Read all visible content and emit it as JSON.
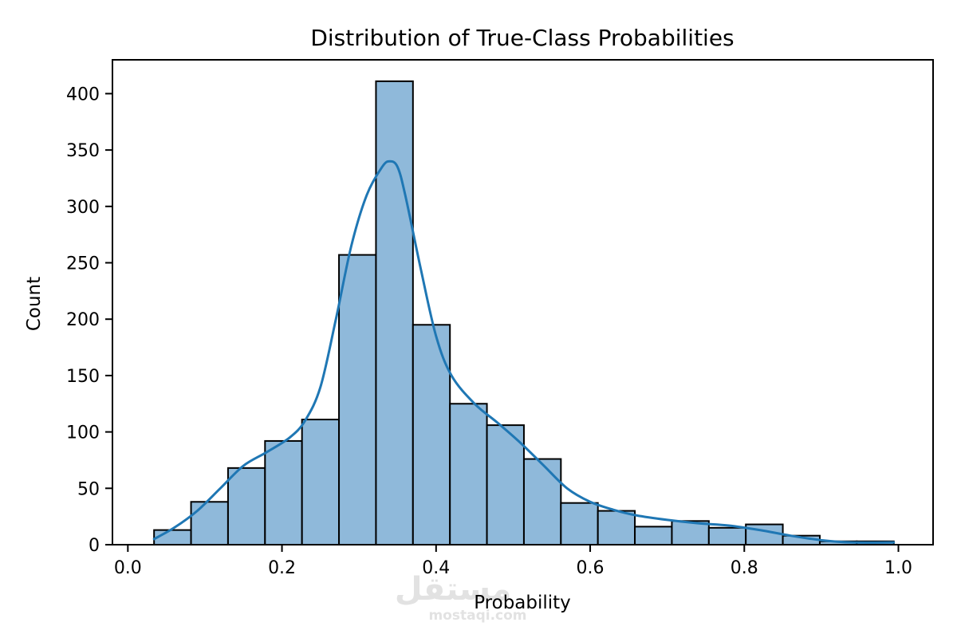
{
  "chart_data": {
    "type": "bar",
    "subtype": "histogram-with-kde",
    "title": "Distribution of True-Class Probabilities",
    "xlabel": "Probability",
    "ylabel": "Count",
    "xlim": [
      -0.02,
      1.045
    ],
    "ylim": [
      0,
      430
    ],
    "xticks": [
      0.0,
      0.2,
      0.4,
      0.6,
      0.8,
      1.0
    ],
    "xtick_labels": [
      "0.0",
      "0.2",
      "0.4",
      "0.6",
      "0.8",
      "1.0"
    ],
    "yticks": [
      0,
      50,
      100,
      150,
      200,
      250,
      300,
      350,
      400
    ],
    "ytick_labels": [
      "0",
      "50",
      "100",
      "150",
      "200",
      "250",
      "300",
      "350",
      "400"
    ],
    "grid": false,
    "bar_color": "#8fb9da",
    "bar_edge_color": "#000000",
    "kde_color": "#1f77b4",
    "bins": [
      {
        "x0": 0.034,
        "x1": 0.082,
        "count": 13
      },
      {
        "x0": 0.082,
        "x1": 0.13,
        "count": 38
      },
      {
        "x0": 0.13,
        "x1": 0.178,
        "count": 68
      },
      {
        "x0": 0.178,
        "x1": 0.226,
        "count": 92
      },
      {
        "x0": 0.226,
        "x1": 0.274,
        "count": 111
      },
      {
        "x0": 0.274,
        "x1": 0.322,
        "count": 257
      },
      {
        "x0": 0.322,
        "x1": 0.37,
        "count": 411
      },
      {
        "x0": 0.37,
        "x1": 0.418,
        "count": 195
      },
      {
        "x0": 0.418,
        "x1": 0.466,
        "count": 125
      },
      {
        "x0": 0.466,
        "x1": 0.514,
        "count": 106
      },
      {
        "x0": 0.514,
        "x1": 0.562,
        "count": 76
      },
      {
        "x0": 0.562,
        "x1": 0.61,
        "count": 37
      },
      {
        "x0": 0.61,
        "x1": 0.658,
        "count": 30
      },
      {
        "x0": 0.658,
        "x1": 0.706,
        "count": 16
      },
      {
        "x0": 0.706,
        "x1": 0.754,
        "count": 21
      },
      {
        "x0": 0.754,
        "x1": 0.802,
        "count": 15
      },
      {
        "x0": 0.802,
        "x1": 0.85,
        "count": 18
      },
      {
        "x0": 0.85,
        "x1": 0.898,
        "count": 8
      },
      {
        "x0": 0.898,
        "x1": 0.946,
        "count": 3
      },
      {
        "x0": 0.946,
        "x1": 0.994,
        "count": 3
      }
    ],
    "kde": {
      "x": [
        0.034,
        0.06,
        0.09,
        0.12,
        0.15,
        0.18,
        0.21,
        0.23,
        0.25,
        0.27,
        0.29,
        0.31,
        0.33,
        0.34,
        0.35,
        0.36,
        0.38,
        0.4,
        0.42,
        0.45,
        0.48,
        0.51,
        0.54,
        0.57,
        0.6,
        0.63,
        0.66,
        0.7,
        0.74,
        0.78,
        0.82,
        0.86,
        0.9,
        0.94,
        0.994
      ],
      "y": [
        5,
        15,
        30,
        50,
        70,
        82,
        95,
        110,
        140,
        200,
        265,
        310,
        335,
        340,
        335,
        310,
        245,
        185,
        150,
        125,
        108,
        90,
        70,
        50,
        38,
        31,
        26,
        22,
        19,
        17,
        13,
        8,
        4,
        2,
        2
      ]
    }
  },
  "watermark": {
    "arabic": "مستقل",
    "latin": "mostaqi.com"
  }
}
